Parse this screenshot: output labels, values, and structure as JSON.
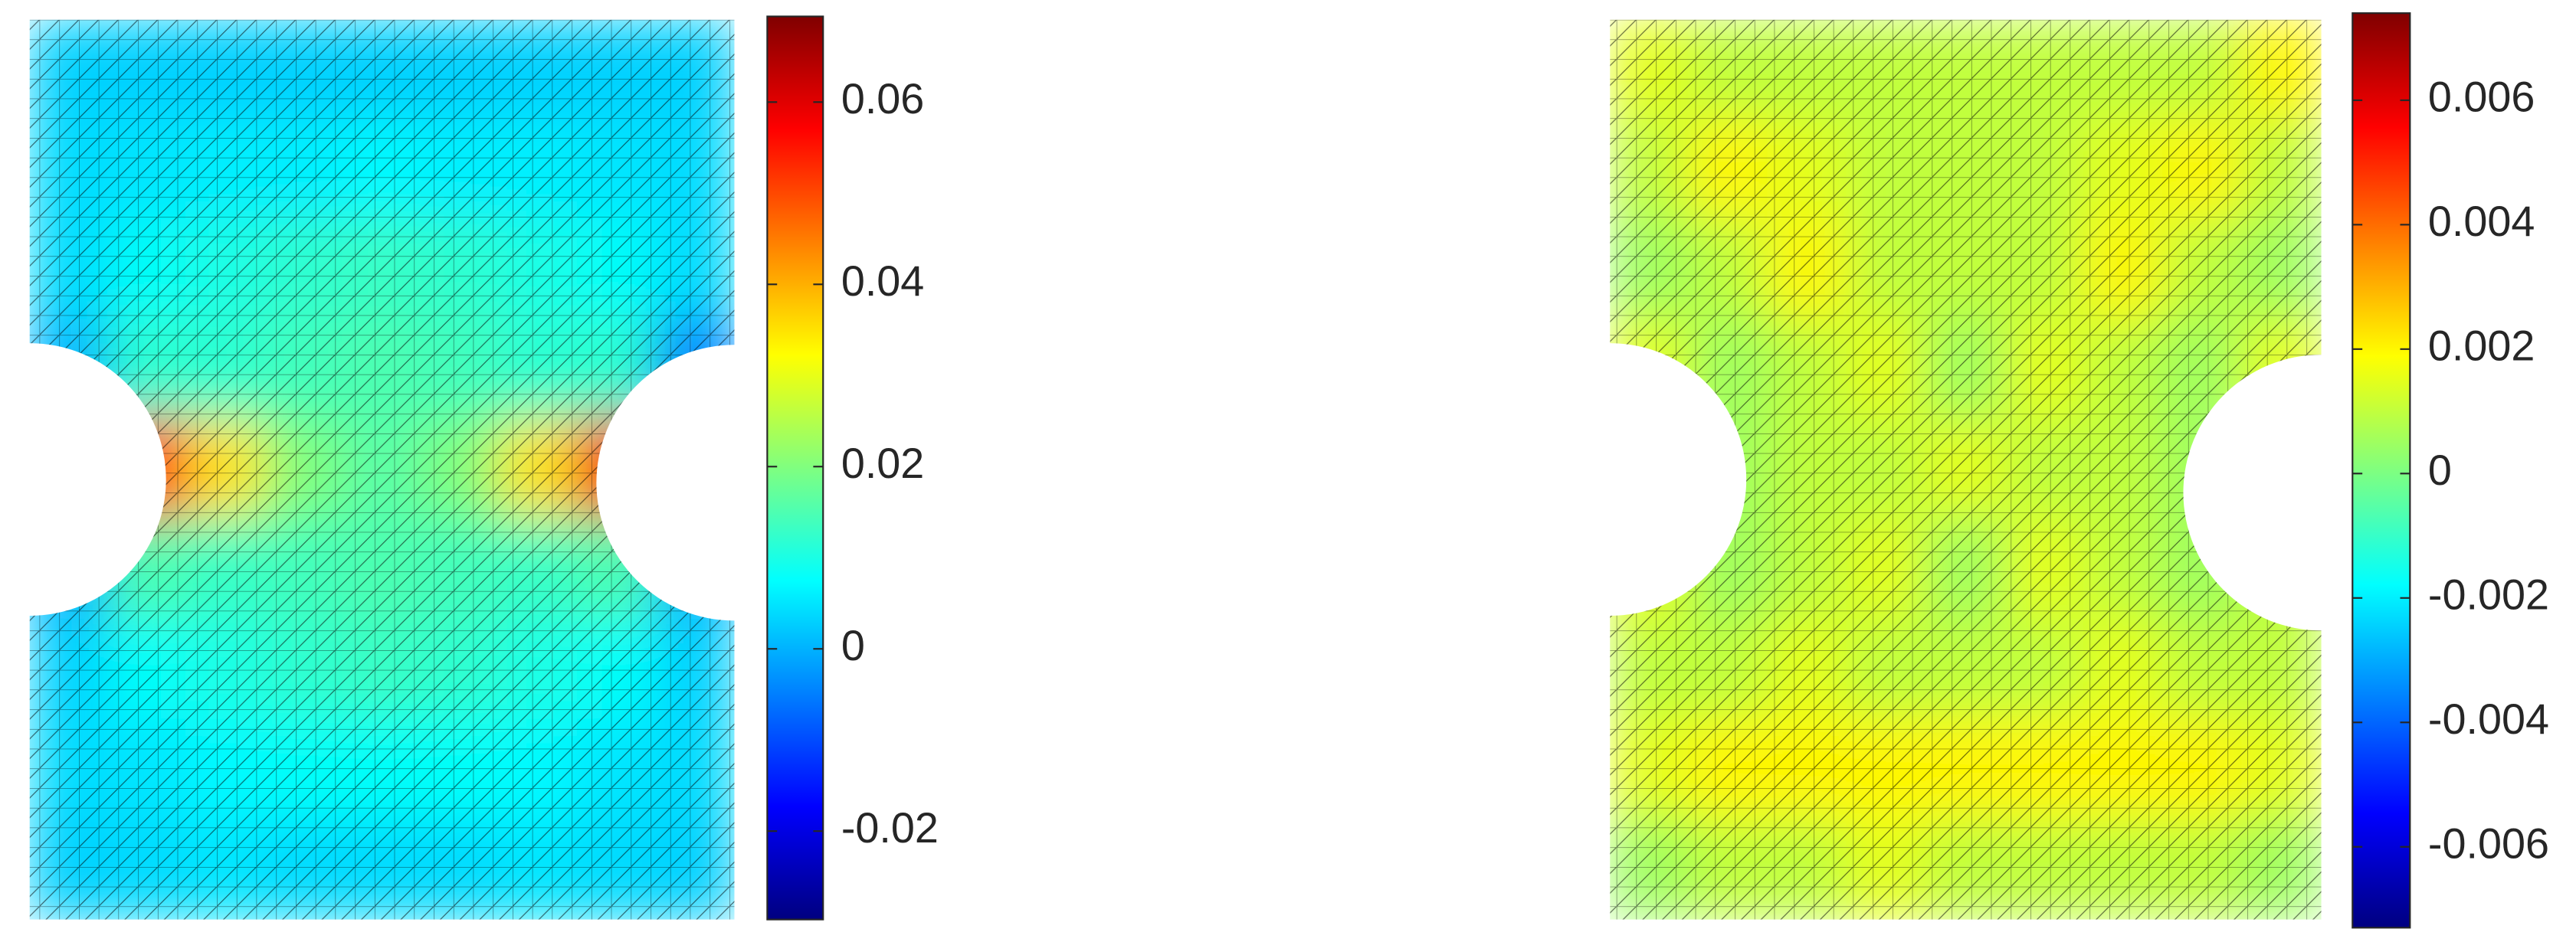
{
  "chart_data": [
    {
      "type": "heatmap",
      "colormap": "jet",
      "values": [
        [
          0.003,
          0.003,
          0.003,
          0.003,
          0.003,
          0.003,
          0.003,
          0.003,
          0.003
        ],
        [
          0.004,
          0.005,
          0.006,
          0.006,
          0.007,
          0.006,
          0.006,
          0.005,
          0.004
        ],
        [
          0.004,
          0.008,
          0.01,
          0.012,
          0.013,
          0.012,
          0.01,
          0.008,
          0.004
        ],
        [
          0.0,
          0.012,
          0.012,
          0.014,
          0.015,
          0.014,
          0.012,
          0.012,
          -0.005
        ],
        [
          null,
          0.055,
          0.035,
          0.02,
          0.016,
          0.02,
          0.035,
          0.058,
          null
        ],
        [
          0.0,
          0.015,
          0.013,
          0.014,
          0.015,
          0.014,
          0.013,
          0.015,
          0.0
        ],
        [
          0.003,
          0.008,
          0.01,
          0.012,
          0.013,
          0.012,
          0.01,
          0.008,
          0.003
        ],
        [
          0.004,
          0.005,
          0.007,
          0.008,
          0.008,
          0.008,
          0.007,
          0.005,
          0.004
        ],
        [
          0.003,
          0.004,
          0.005,
          0.004,
          0.004,
          0.004,
          0.005,
          0.004,
          0.003
        ]
      ],
      "clim": [
        -0.0297,
        0.0694
      ],
      "cticks": [
        0.06,
        0.04,
        0.02,
        0,
        -0.02
      ]
    },
    {
      "type": "heatmap",
      "colormap": "jet",
      "values": [
        [
          0.0015,
          0.001,
          0.001,
          0.001,
          0.001,
          0.001,
          0.001,
          0.001,
          0.002
        ],
        [
          0.001,
          0.002,
          0.0015,
          0.001,
          0.001,
          0.001,
          0.0015,
          0.002,
          0.001
        ],
        [
          0.0005,
          0.001,
          0.002,
          0.001,
          0.001,
          0.001,
          0.002,
          0.001,
          0.0005
        ],
        [
          0.0015,
          0.0005,
          0.001,
          0.0015,
          0.0005,
          0.0015,
          0.001,
          0.0005,
          0.0015
        ],
        [
          null,
          0.0005,
          0.001,
          0.001,
          0.0015,
          0.001,
          0.001,
          0.0005,
          null
        ],
        [
          0.0015,
          0.0005,
          0.001,
          0.0015,
          0.0005,
          0.0015,
          0.001,
          0.0005,
          0.001
        ],
        [
          0.001,
          0.001,
          0.0015,
          0.001,
          0.001,
          0.001,
          0.0015,
          0.001,
          0.001
        ],
        [
          0.0015,
          0.002,
          0.002,
          0.002,
          0.002,
          0.002,
          0.002,
          0.002,
          0.0015
        ],
        [
          0.0005,
          0.001,
          0.001,
          0.0015,
          0.001,
          0.001,
          0.001,
          0.001,
          0.0005
        ]
      ],
      "clim": [
        -0.0073,
        0.0074
      ],
      "cticks": [
        0.006,
        0.004,
        0.002,
        0,
        -0.002,
        -0.004,
        -0.006
      ]
    }
  ]
}
